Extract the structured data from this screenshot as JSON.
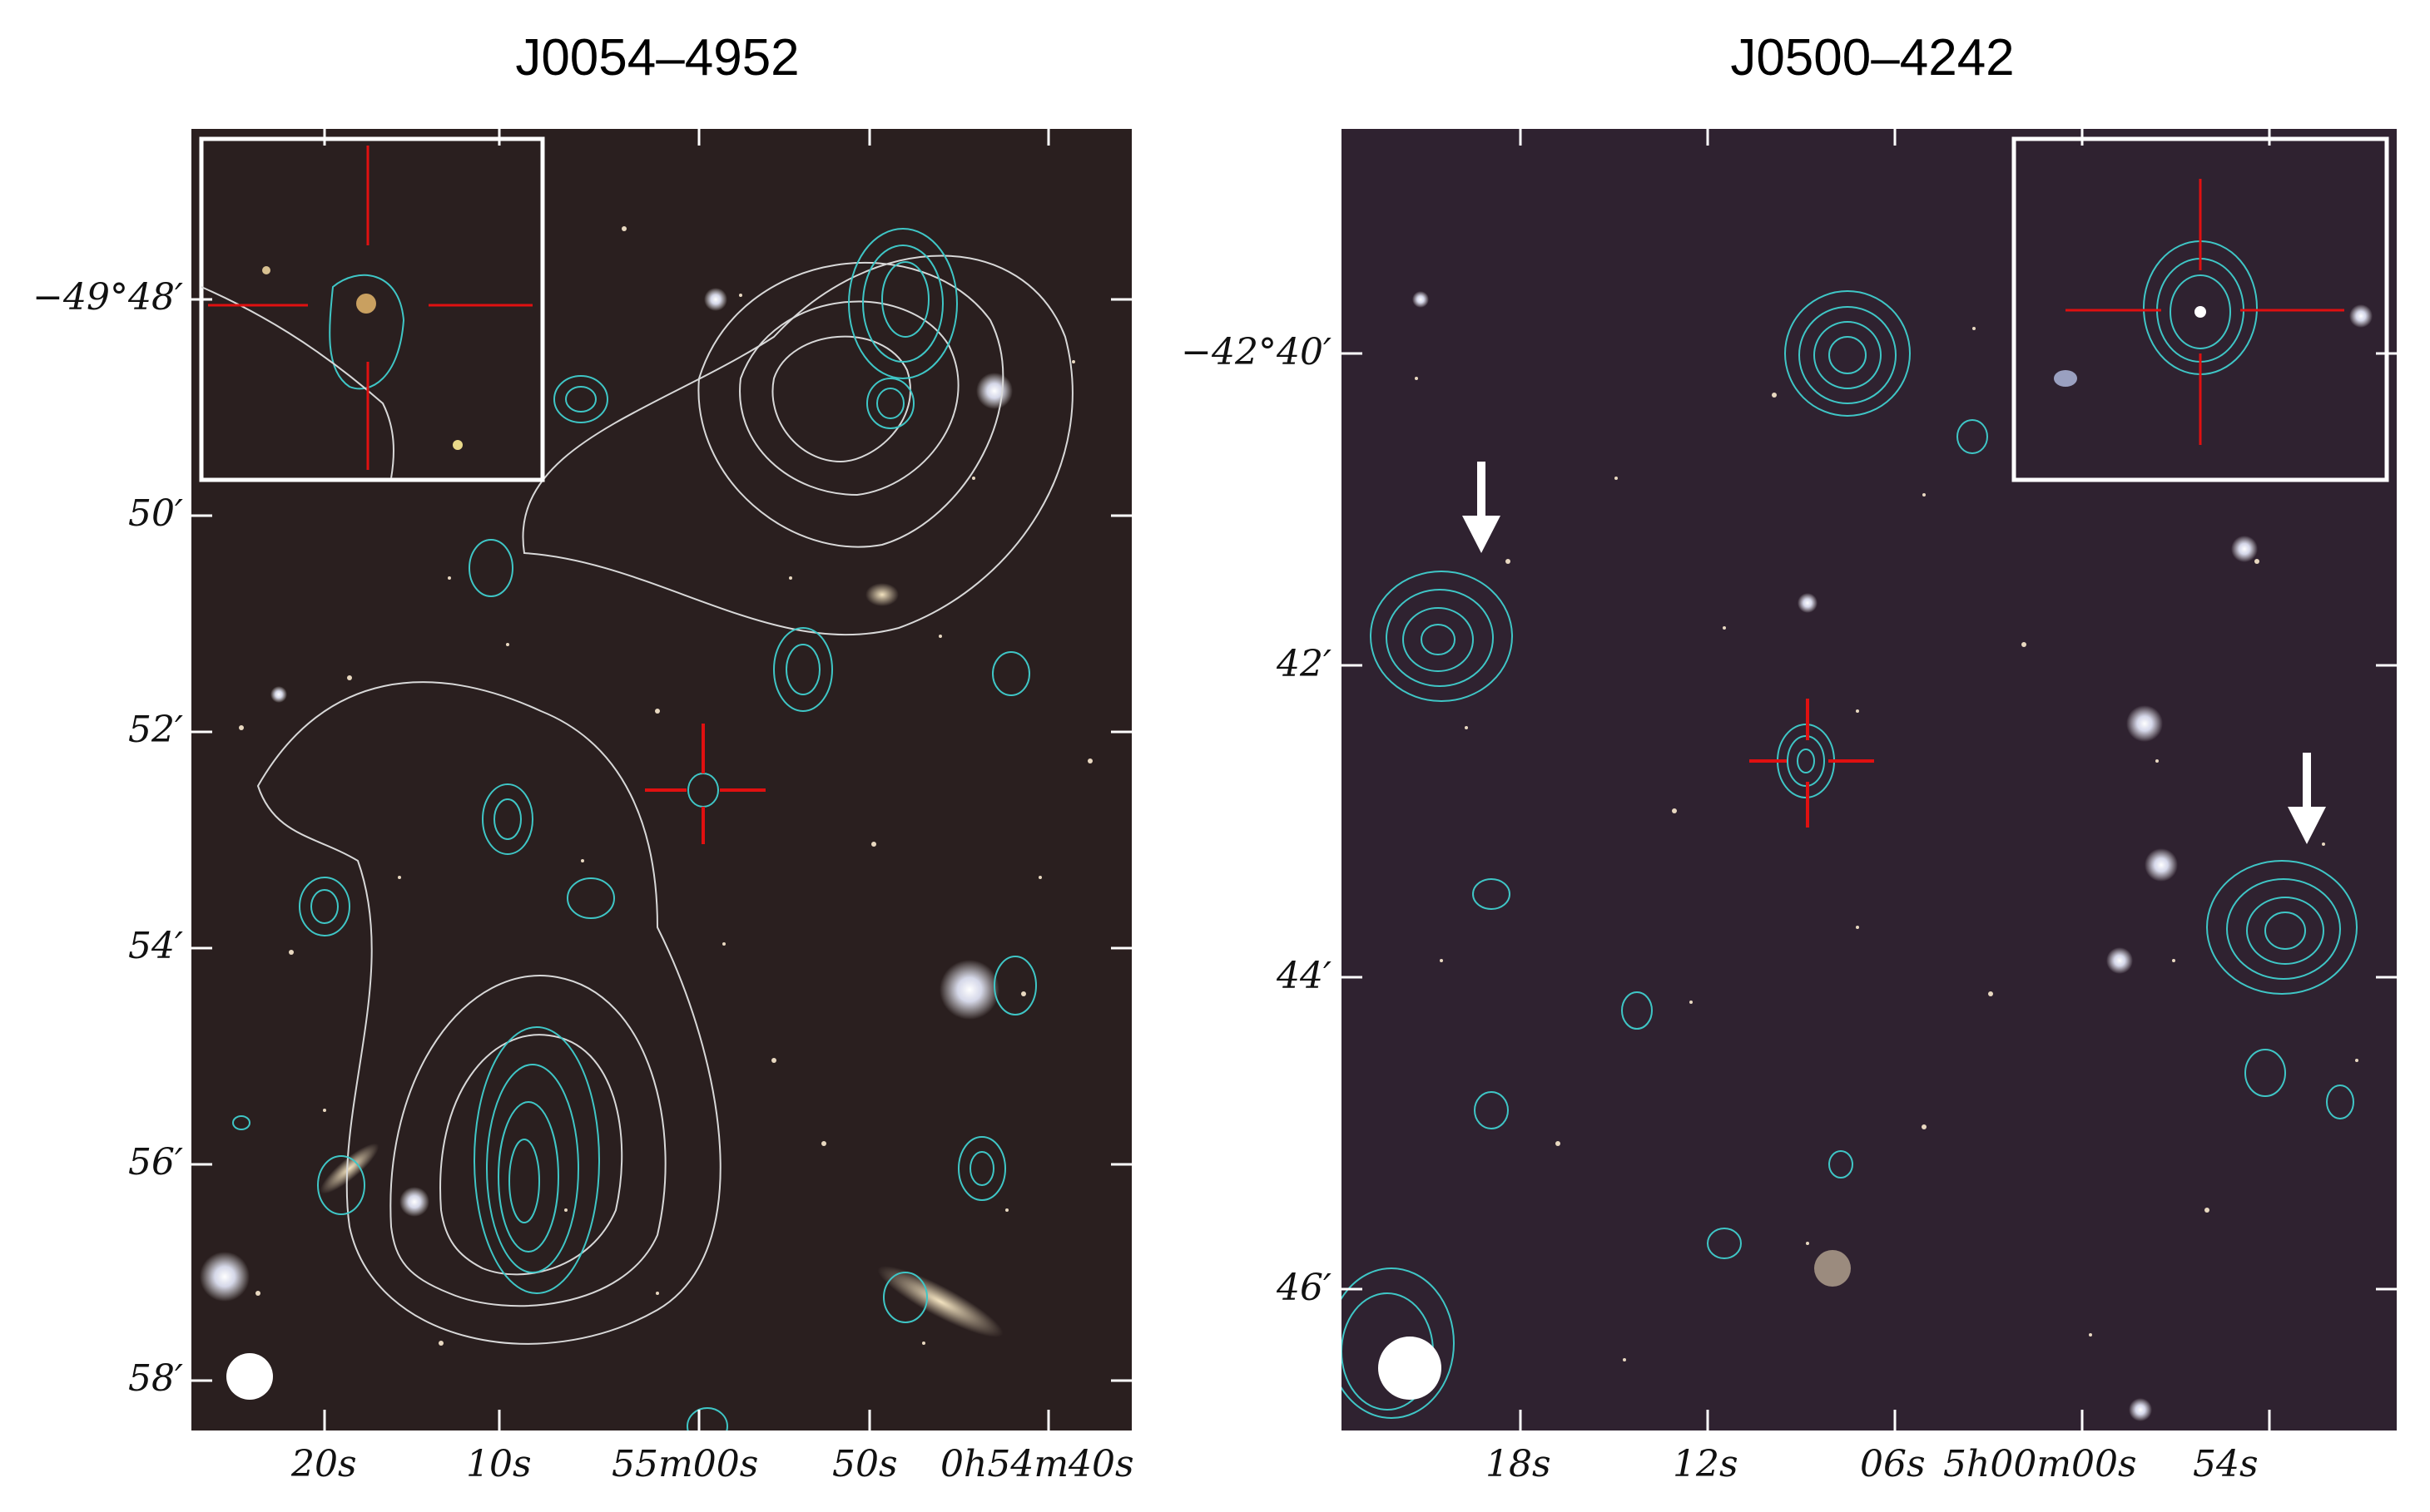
{
  "panels": [
    {
      "title": "J0054–4952",
      "dec_ticks": [
        "−49°48′",
        "50′",
        "52′",
        "54′",
        "56′",
        "58′"
      ],
      "ra_ticks": [
        "20s",
        "10s",
        "55m00s",
        "50s",
        "0h54m40s"
      ]
    },
    {
      "title": "J0500–4242",
      "dec_ticks": [
        "−42°40′",
        "42′",
        "44′",
        "46′"
      ],
      "ra_ticks": [
        "18s",
        "12s",
        "06s",
        "5h00m00s",
        "54s"
      ]
    }
  ],
  "colors": {
    "sky": "#2a1f1f",
    "contour_radio": "#3fc6c6",
    "contour_xray": "#d8d8d8",
    "crosshair": "#e01010",
    "inset_border": "#ffffff",
    "arrow": "#ffffff"
  }
}
